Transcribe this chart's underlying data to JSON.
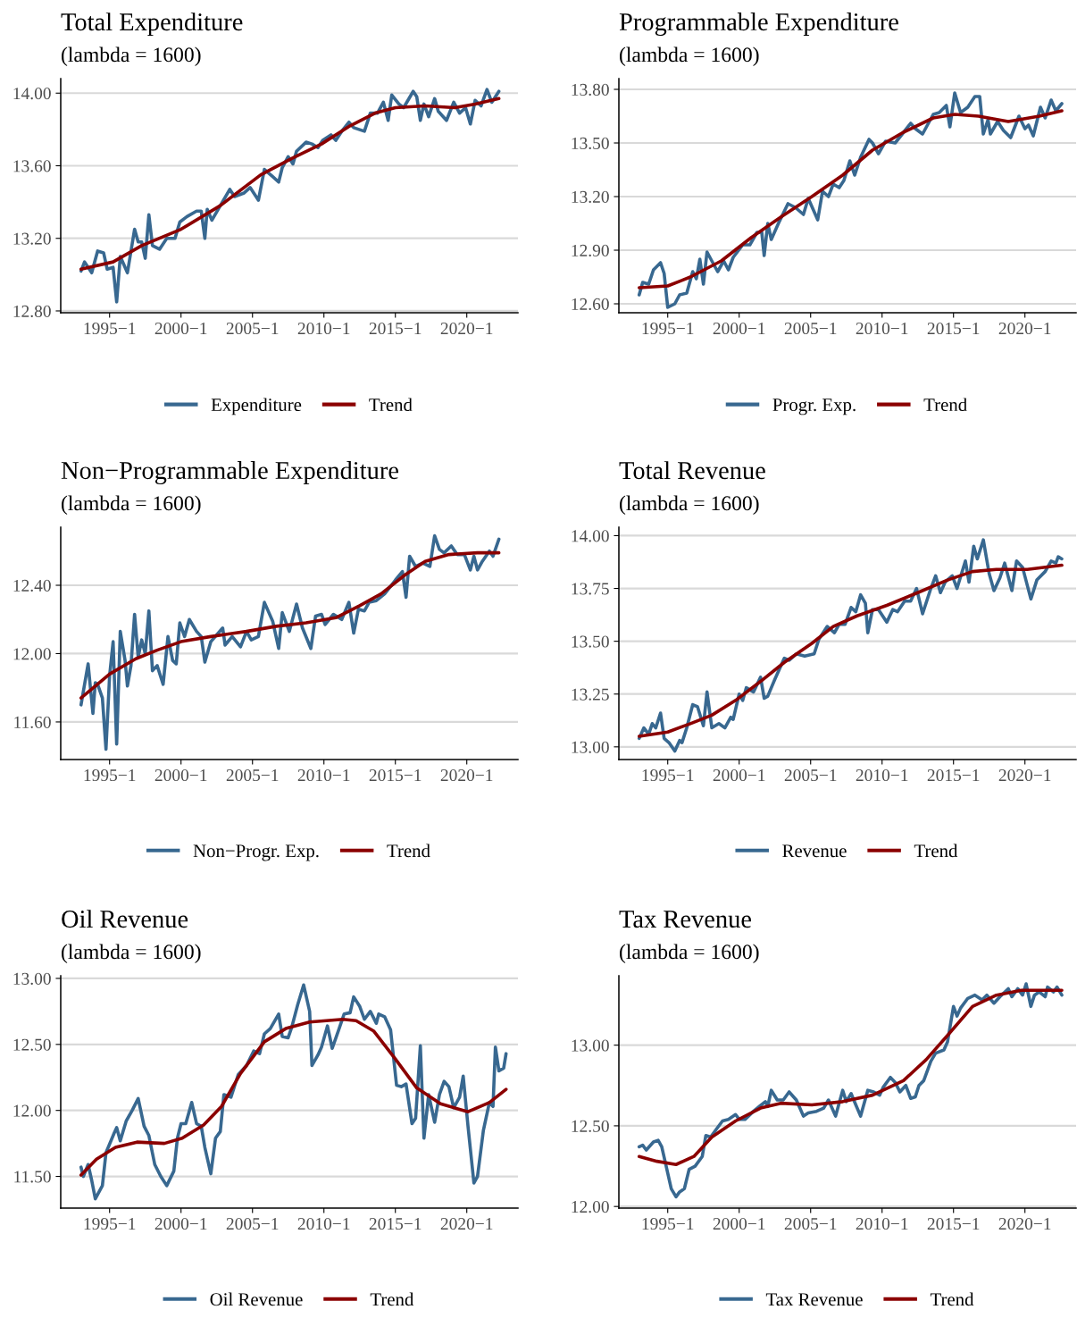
{
  "chart_data": [
    {
      "type": "line",
      "title": "Total Expenditure",
      "subtitle": "(lambda = 1600)",
      "xlim": [
        "1991-08",
        "2023-08"
      ],
      "xticks": [
        {
          "value": "1995-01",
          "label": "1995−1"
        },
        {
          "value": "2000-01",
          "label": "2000−1"
        },
        {
          "value": "2005-01",
          "label": "2005−1"
        },
        {
          "value": "2010-01",
          "label": "2010−1"
        },
        {
          "value": "2015-01",
          "label": "2015−1"
        },
        {
          "value": "2020-01",
          "label": "2020−1"
        }
      ],
      "ylim": [
        12.79,
        14.08
      ],
      "yticks": [
        {
          "value": 12.8,
          "label": "12.80"
        },
        {
          "value": 13.2,
          "label": "13.20"
        },
        {
          "value": 13.6,
          "label": "13.60"
        },
        {
          "value": 14.0,
          "label": "14.00"
        }
      ],
      "grid": "y",
      "legend": "bottom",
      "series": [
        {
          "name": "Expenditure",
          "color": "#386890",
          "x": [
            "1993-01",
            "1993-04",
            "1993-10",
            "1994-03",
            "1994-08",
            "1994-11",
            "1995-04",
            "1995-07",
            "1995-10",
            "1996-04",
            "1996-10",
            "1997-01",
            "1997-04",
            "1997-07",
            "1997-10",
            "1998-01",
            "1998-07",
            "1999-01",
            "1999-08",
            "1999-12",
            "2000-06",
            "2001-02",
            "2001-06",
            "2001-09",
            "2001-11",
            "2002-03",
            "2002-10",
            "2003-06",
            "2003-10",
            "2004-06",
            "2004-11",
            "2005-06",
            "2005-11",
            "2006-06",
            "2006-11",
            "2007-02",
            "2007-07",
            "2007-11",
            "2008-02",
            "2008-10",
            "2009-03",
            "2009-08",
            "2009-12",
            "2010-07",
            "2010-11",
            "2011-04",
            "2011-10",
            "2012-02",
            "2012-11",
            "2013-04",
            "2013-10",
            "2014-03",
            "2014-07",
            "2014-10",
            "2015-04",
            "2015-08",
            "2016-04",
            "2016-07",
            "2016-10",
            "2017-01",
            "2017-05",
            "2017-10",
            "2018-01",
            "2018-08",
            "2019-02",
            "2019-07",
            "2019-12",
            "2020-04",
            "2020-08",
            "2021-01",
            "2021-06",
            "2021-10",
            "2022-04"
          ],
          "values": [
            13.02,
            13.07,
            13.01,
            13.13,
            13.12,
            13.03,
            13.04,
            12.85,
            13.1,
            13.01,
            13.25,
            13.18,
            13.18,
            13.09,
            13.33,
            13.16,
            13.14,
            13.2,
            13.2,
            13.29,
            13.32,
            13.35,
            13.35,
            13.2,
            13.36,
            13.3,
            13.38,
            13.47,
            13.43,
            13.45,
            13.48,
            13.41,
            13.58,
            13.54,
            13.51,
            13.59,
            13.65,
            13.61,
            13.68,
            13.73,
            13.72,
            13.7,
            13.74,
            13.77,
            13.74,
            13.79,
            13.84,
            13.81,
            13.79,
            13.89,
            13.89,
            13.95,
            13.85,
            13.99,
            13.94,
            13.92,
            14.01,
            13.98,
            13.85,
            13.94,
            13.87,
            13.97,
            13.9,
            13.85,
            13.95,
            13.89,
            13.92,
            13.83,
            13.96,
            13.93,
            14.02,
            13.95,
            14.01
          ]
        },
        {
          "name": "Trend",
          "color": "#8b0000",
          "x": [
            "1993-01",
            "1995-04",
            "1997-04",
            "2000-01",
            "2002-10",
            "2005-08",
            "2007-10",
            "2009-11",
            "2011-11",
            "2013-08",
            "2015-01",
            "2017-02",
            "2019-03",
            "2020-08",
            "2022-04"
          ],
          "values": [
            13.03,
            13.07,
            13.16,
            13.25,
            13.38,
            13.55,
            13.64,
            13.72,
            13.82,
            13.89,
            13.92,
            13.93,
            13.92,
            13.94,
            13.97
          ]
        }
      ]
    },
    {
      "type": "line",
      "title": "Programmable Expenditure",
      "subtitle": "(lambda = 1600)",
      "xlim": [
        "1991-08",
        "2023-08"
      ],
      "xticks": [
        {
          "value": "1995-01",
          "label": "1995−1"
        },
        {
          "value": "2000-01",
          "label": "2000−1"
        },
        {
          "value": "2005-01",
          "label": "2005−1"
        },
        {
          "value": "2010-01",
          "label": "2010−1"
        },
        {
          "value": "2015-01",
          "label": "2015−1"
        },
        {
          "value": "2020-01",
          "label": "2020−1"
        }
      ],
      "ylim": [
        12.55,
        13.86
      ],
      "yticks": [
        {
          "value": 12.6,
          "label": "12.60"
        },
        {
          "value": 12.9,
          "label": "12.90"
        },
        {
          "value": 13.2,
          "label": "13.20"
        },
        {
          "value": 13.5,
          "label": "13.50"
        },
        {
          "value": 13.8,
          "label": "13.80"
        }
      ],
      "grid": "y",
      "legend": "bottom",
      "series": [
        {
          "name": "Progr. Exp.",
          "color": "#386890",
          "x": [
            "1993-01",
            "1993-04",
            "1993-09",
            "1994-01",
            "1994-07",
            "1994-10",
            "1995-01",
            "1995-07",
            "1995-11",
            "1996-05",
            "1996-10",
            "1997-01",
            "1997-04",
            "1997-07",
            "1997-10",
            "1998-02",
            "1998-07",
            "1998-12",
            "1999-04",
            "1999-08",
            "2000-04",
            "2000-10",
            "2001-04",
            "2001-08",
            "2001-10",
            "2002-01",
            "2002-04",
            "2002-10",
            "2003-06",
            "2003-12",
            "2004-07",
            "2004-11",
            "2005-07",
            "2005-11",
            "2006-04",
            "2006-08",
            "2007-01",
            "2007-05",
            "2007-10",
            "2008-02",
            "2008-07",
            "2009-02",
            "2009-05",
            "2009-10",
            "2010-04",
            "2010-12",
            "2011-06",
            "2012-01",
            "2012-05",
            "2012-11",
            "2013-08",
            "2014-01",
            "2014-07",
            "2014-10",
            "2015-02",
            "2015-07",
            "2016-01",
            "2016-07",
            "2016-11",
            "2017-02",
            "2017-06",
            "2017-08",
            "2018-02",
            "2018-07",
            "2019-01",
            "2019-08",
            "2020-01",
            "2020-04",
            "2020-08",
            "2021-02",
            "2021-06",
            "2021-11",
            "2022-03",
            "2022-08"
          ],
          "values": [
            12.65,
            12.72,
            12.71,
            12.79,
            12.83,
            12.77,
            12.58,
            12.6,
            12.65,
            12.66,
            12.78,
            12.74,
            12.85,
            12.71,
            12.89,
            12.84,
            12.78,
            12.84,
            12.79,
            12.86,
            12.93,
            12.93,
            13.0,
            13.0,
            12.87,
            13.05,
            12.96,
            13.05,
            13.16,
            13.14,
            13.1,
            13.19,
            13.07,
            13.23,
            13.2,
            13.27,
            13.25,
            13.29,
            13.4,
            13.32,
            13.42,
            13.52,
            13.5,
            13.44,
            13.51,
            13.5,
            13.55,
            13.61,
            13.58,
            13.55,
            13.66,
            13.67,
            13.71,
            13.59,
            13.78,
            13.67,
            13.7,
            13.76,
            13.76,
            13.55,
            13.63,
            13.55,
            13.62,
            13.57,
            13.53,
            13.65,
            13.58,
            13.6,
            13.54,
            13.7,
            13.64,
            13.74,
            13.68,
            13.72
          ]
        },
        {
          "name": "Trend",
          "color": "#8b0000",
          "x": [
            "1993-01",
            "1995-01",
            "1996-08",
            "1998-10",
            "2000-11",
            "2003-01",
            "2005-02",
            "2007-04",
            "2009-05",
            "2011-07",
            "2013-08",
            "2015-02",
            "2016-10",
            "2018-11",
            "2021-01",
            "2022-08"
          ],
          "values": [
            12.69,
            12.7,
            12.75,
            12.84,
            12.97,
            13.09,
            13.2,
            13.32,
            13.46,
            13.56,
            13.64,
            13.66,
            13.65,
            13.62,
            13.65,
            13.68
          ]
        }
      ]
    },
    {
      "type": "line",
      "title": "Non−Programmable Expenditure",
      "subtitle": "(lambda = 1600)",
      "xlim": [
        "1991-08",
        "2023-08"
      ],
      "xticks": [
        {
          "value": "1995-01",
          "label": "1995−1"
        },
        {
          "value": "2000-01",
          "label": "2000−1"
        },
        {
          "value": "2005-01",
          "label": "2005−1"
        },
        {
          "value": "2010-01",
          "label": "2010−1"
        },
        {
          "value": "2015-01",
          "label": "2015−1"
        },
        {
          "value": "2020-01",
          "label": "2020−1"
        }
      ],
      "ylim": [
        11.38,
        12.74
      ],
      "yticks": [
        {
          "value": 11.6,
          "label": "11.60"
        },
        {
          "value": 12.0,
          "label": "12.00"
        },
        {
          "value": 12.4,
          "label": "12.40"
        }
      ],
      "grid": "y",
      "legend": "bottom",
      "series": [
        {
          "name": "Non−Progr. Exp.",
          "color": "#386890",
          "x": [
            "1993-01",
            "1993-07",
            "1993-11",
            "1994-01",
            "1994-03",
            "1994-07",
            "1994-10",
            "1995-01",
            "1995-04",
            "1995-07",
            "1995-10",
            "1996-02",
            "1996-04",
            "1996-07",
            "1996-10",
            "1997-01",
            "1997-04",
            "1997-07",
            "1997-10",
            "1998-01",
            "1998-05",
            "1998-10",
            "1999-02",
            "1999-06",
            "1999-09",
            "1999-12",
            "2000-04",
            "2000-08",
            "2001-02",
            "2001-06",
            "2001-09",
            "2002-02",
            "2002-12",
            "2003-02",
            "2003-08",
            "2004-03",
            "2004-08",
            "2004-12",
            "2005-06",
            "2005-11",
            "2006-06",
            "2006-11",
            "2007-02",
            "2007-08",
            "2008-02",
            "2008-07",
            "2009-02",
            "2009-06",
            "2009-11",
            "2010-02",
            "2010-09",
            "2011-04",
            "2011-10",
            "2012-02",
            "2012-06",
            "2012-11",
            "2013-03",
            "2013-09",
            "2014-04",
            "2015-01",
            "2015-07",
            "2015-10",
            "2016-01",
            "2016-06",
            "2016-12",
            "2017-06",
            "2017-10",
            "2018-02",
            "2018-06",
            "2018-12",
            "2019-05",
            "2019-11",
            "2020-04",
            "2020-07",
            "2020-10",
            "2021-02",
            "2021-08",
            "2021-11",
            "2022-04"
          ],
          "values": [
            11.7,
            11.94,
            11.65,
            11.83,
            11.82,
            11.74,
            11.44,
            11.87,
            12.07,
            11.47,
            12.13,
            11.96,
            11.81,
            11.93,
            12.23,
            11.98,
            12.08,
            12.0,
            12.25,
            11.9,
            11.93,
            11.82,
            12.1,
            11.96,
            11.94,
            12.18,
            12.1,
            12.2,
            12.13,
            12.1,
            11.95,
            12.07,
            12.15,
            12.05,
            12.1,
            12.04,
            12.13,
            12.08,
            12.1,
            12.3,
            12.19,
            12.03,
            12.24,
            12.13,
            12.29,
            12.15,
            12.03,
            12.22,
            12.23,
            12.17,
            12.23,
            12.2,
            12.3,
            12.12,
            12.26,
            12.25,
            12.3,
            12.31,
            12.35,
            12.43,
            12.48,
            12.33,
            12.57,
            12.51,
            12.53,
            12.51,
            12.69,
            12.61,
            12.59,
            12.63,
            12.58,
            12.58,
            12.49,
            12.57,
            12.49,
            12.54,
            12.6,
            12.57,
            12.67
          ]
        },
        {
          "name": "Trend",
          "color": "#8b0000",
          "x": [
            "1993-01",
            "1995-01",
            "1996-11",
            "1998-05",
            "2000-01",
            "2002-02",
            "2004-08",
            "2006-09",
            "2008-10",
            "2010-11",
            "2012-07",
            "2014-01",
            "2015-09",
            "2017-02",
            "2018-10",
            "2020-10",
            "2022-04"
          ],
          "values": [
            11.74,
            11.88,
            11.97,
            12.02,
            12.07,
            12.1,
            12.13,
            12.16,
            12.18,
            12.21,
            12.28,
            12.35,
            12.46,
            12.54,
            12.58,
            12.59,
            12.59
          ]
        }
      ]
    },
    {
      "type": "line",
      "title": "Total Revenue",
      "subtitle": "(lambda = 1600)",
      "xlim": [
        "1991-08",
        "2023-08"
      ],
      "xticks": [
        {
          "value": "1995-01",
          "label": "1995−1"
        },
        {
          "value": "2000-01",
          "label": "2000−1"
        },
        {
          "value": "2005-01",
          "label": "2005−1"
        },
        {
          "value": "2010-01",
          "label": "2010−1"
        },
        {
          "value": "2015-01",
          "label": "2015−1"
        },
        {
          "value": "2020-01",
          "label": "2020−1"
        }
      ],
      "ylim": [
        12.94,
        14.04
      ],
      "yticks": [
        {
          "value": 13.0,
          "label": "13.00"
        },
        {
          "value": 13.25,
          "label": "13.25"
        },
        {
          "value": 13.5,
          "label": "13.50"
        },
        {
          "value": 13.75,
          "label": "13.75"
        },
        {
          "value": 14.0,
          "label": "14.00"
        }
      ],
      "grid": "y",
      "legend": "bottom",
      "series": [
        {
          "name": "Revenue",
          "color": "#386890",
          "x": [
            "1993-01",
            "1993-05",
            "1993-09",
            "1993-12",
            "1994-03",
            "1994-07",
            "1994-10",
            "1995-02",
            "1995-07",
            "1995-11",
            "1996-01",
            "1996-05",
            "1996-10",
            "1997-02",
            "1997-07",
            "1997-10",
            "1998-02",
            "1998-08",
            "1999-01",
            "1999-06",
            "1999-08",
            "2000-01",
            "2000-04",
            "2000-07",
            "2001-01",
            "2001-07",
            "2001-10",
            "2002-01",
            "2002-07",
            "2003-03",
            "2003-07",
            "2004-01",
            "2004-08",
            "2005-04",
            "2005-08",
            "2006-03",
            "2006-09",
            "2007-01",
            "2007-06",
            "2007-11",
            "2008-03",
            "2008-07",
            "2008-11",
            "2009-01",
            "2009-05",
            "2009-10",
            "2010-05",
            "2010-10",
            "2011-02",
            "2011-08",
            "2012-01",
            "2012-06",
            "2012-11",
            "2013-06",
            "2013-10",
            "2014-02",
            "2014-06",
            "2014-12",
            "2015-04",
            "2015-11",
            "2016-02",
            "2016-06",
            "2016-09",
            "2017-02",
            "2017-07",
            "2017-11",
            "2018-04",
            "2018-08",
            "2019-02",
            "2019-06",
            "2019-11",
            "2020-06",
            "2020-11",
            "2021-06",
            "2021-11",
            "2022-03",
            "2022-05",
            "2022-08"
          ],
          "values": [
            13.04,
            13.09,
            13.06,
            13.11,
            13.09,
            13.16,
            13.04,
            13.02,
            12.98,
            13.03,
            13.02,
            13.09,
            13.2,
            13.19,
            13.1,
            13.26,
            13.09,
            13.11,
            13.09,
            13.14,
            13.13,
            13.25,
            13.22,
            13.28,
            13.26,
            13.33,
            13.23,
            13.24,
            13.32,
            13.42,
            13.41,
            13.44,
            13.43,
            13.44,
            13.51,
            13.57,
            13.54,
            13.58,
            13.58,
            13.66,
            13.64,
            13.72,
            13.68,
            13.54,
            13.65,
            13.65,
            13.59,
            13.65,
            13.64,
            13.69,
            13.69,
            13.75,
            13.63,
            13.75,
            13.81,
            13.73,
            13.78,
            13.81,
            13.75,
            13.88,
            13.78,
            13.95,
            13.89,
            13.98,
            13.82,
            13.74,
            13.8,
            13.87,
            13.74,
            13.88,
            13.85,
            13.7,
            13.79,
            13.83,
            13.88,
            13.87,
            13.9,
            13.89
          ]
        },
        {
          "name": "Trend",
          "color": "#8b0000",
          "x": [
            "1993-01",
            "1995-01",
            "1996-08",
            "1998-02",
            "1999-10",
            "2001-07",
            "2003-03",
            "2005-02",
            "2006-08",
            "2008-04",
            "2010-05",
            "2012-07",
            "2014-08",
            "2016-05",
            "2018-01",
            "2020-03",
            "2022-08"
          ],
          "values": [
            13.05,
            13.07,
            13.11,
            13.15,
            13.22,
            13.31,
            13.4,
            13.49,
            13.57,
            13.62,
            13.67,
            13.73,
            13.79,
            13.83,
            13.84,
            13.84,
            13.86
          ]
        }
      ]
    },
    {
      "type": "line",
      "title": "Oil Revenue",
      "subtitle": "(lambda = 1600)",
      "xlim": [
        "1991-08",
        "2023-08"
      ],
      "xticks": [
        {
          "value": "1995-01",
          "label": "1995−1"
        },
        {
          "value": "2000-01",
          "label": "2000−1"
        },
        {
          "value": "2005-01",
          "label": "2005−1"
        },
        {
          "value": "2010-01",
          "label": "2010−1"
        },
        {
          "value": "2015-01",
          "label": "2015−1"
        },
        {
          "value": "2020-01",
          "label": "2020−1"
        }
      ],
      "ylim": [
        11.26,
        13.02
      ],
      "yticks": [
        {
          "value": 11.5,
          "label": "11.50"
        },
        {
          "value": 12.0,
          "label": "12.00"
        },
        {
          "value": 12.5,
          "label": "12.50"
        },
        {
          "value": 13.0,
          "label": "13.00"
        }
      ],
      "grid": "y",
      "legend": "bottom",
      "series": [
        {
          "name": "Oil Revenue",
          "color": "#386890",
          "x": [
            "1993-01",
            "1993-03",
            "1993-07",
            "1993-10",
            "1994-01",
            "1994-07",
            "1994-10",
            "1995-05",
            "1995-07",
            "1995-10",
            "1996-03",
            "1996-08",
            "1997-01",
            "1997-06",
            "1997-10",
            "1998-03",
            "1998-08",
            "1999-01",
            "1999-07",
            "1999-10",
            "2000-01",
            "2000-05",
            "2000-10",
            "2001-02",
            "2001-06",
            "2001-09",
            "2002-02",
            "2002-06",
            "2002-10",
            "2003-01",
            "2003-07",
            "2004-01",
            "2004-08",
            "2005-02",
            "2005-07",
            "2005-11",
            "2006-04",
            "2006-11",
            "2007-02",
            "2007-07",
            "2007-10",
            "2008-03",
            "2008-08",
            "2009-01",
            "2009-03",
            "2009-08",
            "2009-11",
            "2010-04",
            "2010-08",
            "2011-01",
            "2011-06",
            "2011-11",
            "2012-02",
            "2012-07",
            "2012-11",
            "2013-04",
            "2013-09",
            "2013-11",
            "2014-04",
            "2014-09",
            "2015-02",
            "2015-06",
            "2015-10",
            "2016-03",
            "2016-06",
            "2016-10",
            "2017-01",
            "2017-05",
            "2017-10",
            "2018-02",
            "2018-06",
            "2018-10",
            "2019-02",
            "2019-07",
            "2019-10",
            "2020-02",
            "2020-07",
            "2020-10",
            "2021-03",
            "2021-08",
            "2021-11",
            "2022-01",
            "2022-04",
            "2022-08",
            "2022-10"
          ],
          "values": [
            11.57,
            11.5,
            11.59,
            11.47,
            11.33,
            11.43,
            11.68,
            11.83,
            11.87,
            11.77,
            11.92,
            12.0,
            12.09,
            11.88,
            11.81,
            11.59,
            11.5,
            11.43,
            11.54,
            11.79,
            11.9,
            11.9,
            12.06,
            11.9,
            11.88,
            11.72,
            11.52,
            11.79,
            11.84,
            12.12,
            12.1,
            12.27,
            12.34,
            12.45,
            12.43,
            12.58,
            12.62,
            12.73,
            12.56,
            12.55,
            12.63,
            12.8,
            12.95,
            12.75,
            12.34,
            12.42,
            12.48,
            12.64,
            12.47,
            12.6,
            12.73,
            12.74,
            12.86,
            12.79,
            12.69,
            12.75,
            12.66,
            12.73,
            12.71,
            12.61,
            12.19,
            12.18,
            12.2,
            11.9,
            11.94,
            12.49,
            11.79,
            12.12,
            11.91,
            12.12,
            12.22,
            12.18,
            12.02,
            12.1,
            12.26,
            11.88,
            11.45,
            11.5,
            11.85,
            12.06,
            12.03,
            12.48,
            12.3,
            12.32,
            12.43
          ]
        },
        {
          "name": "Trend",
          "color": "#8b0000",
          "x": [
            "1993-01",
            "1994-02",
            "1995-06",
            "1996-12",
            "1998-11",
            "2000-02",
            "2001-08",
            "2002-11",
            "2004-03",
            "2005-11",
            "2007-05",
            "2009-01",
            "2011-05",
            "2012-04",
            "2013-07",
            "2015-01",
            "2016-07",
            "2018-03",
            "2020-02",
            "2021-08",
            "2022-10"
          ],
          "values": [
            11.51,
            11.63,
            11.72,
            11.76,
            11.75,
            11.79,
            11.89,
            12.03,
            12.28,
            12.52,
            12.62,
            12.67,
            12.69,
            12.68,
            12.6,
            12.39,
            12.17,
            12.05,
            11.99,
            12.06,
            12.16
          ]
        }
      ]
    },
    {
      "type": "line",
      "title": "Tax Revenue",
      "subtitle": "(lambda = 1600)",
      "xlim": [
        "1991-08",
        "2023-08"
      ],
      "xticks": [
        {
          "value": "1995-01",
          "label": "1995−1"
        },
        {
          "value": "2000-01",
          "label": "2000−1"
        },
        {
          "value": "2005-01",
          "label": "2005−1"
        },
        {
          "value": "2010-01",
          "label": "2010−1"
        },
        {
          "value": "2015-01",
          "label": "2015−1"
        },
        {
          "value": "2020-01",
          "label": "2020−1"
        }
      ],
      "ylim": [
        11.99,
        13.43
      ],
      "yticks": [
        {
          "value": 12.0,
          "label": "12.00"
        },
        {
          "value": 12.5,
          "label": "12.50"
        },
        {
          "value": 13.0,
          "label": "13.00"
        }
      ],
      "grid": "y",
      "legend": "bottom",
      "series": [
        {
          "name": "Tax Revenue",
          "color": "#386890",
          "x": [
            "1993-01",
            "1993-04",
            "1993-07",
            "1994-01",
            "1994-05",
            "1994-08",
            "1994-12",
            "1995-04",
            "1995-08",
            "1995-11",
            "1996-03",
            "1996-07",
            "1996-12",
            "1997-06",
            "1997-09",
            "1998-01",
            "1998-06",
            "1998-11",
            "1999-04",
            "1999-10",
            "2000-01",
            "2000-06",
            "2001-01",
            "2001-06",
            "2001-11",
            "2002-01",
            "2002-04",
            "2002-09",
            "2003-02",
            "2003-07",
            "2004-01",
            "2004-07",
            "2004-11",
            "2005-06",
            "2005-12",
            "2006-04",
            "2006-10",
            "2007-04",
            "2007-07",
            "2007-11",
            "2008-03",
            "2008-07",
            "2009-01",
            "2009-06",
            "2009-11",
            "2010-02",
            "2010-08",
            "2010-12",
            "2011-04",
            "2011-09",
            "2012-01",
            "2012-05",
            "2012-08",
            "2012-12",
            "2013-06",
            "2013-10",
            "2014-05",
            "2014-08",
            "2015-01",
            "2015-04",
            "2015-07",
            "2016-01",
            "2016-07",
            "2017-01",
            "2017-05",
            "2017-11",
            "2018-04",
            "2018-11",
            "2019-02",
            "2019-07",
            "2019-11",
            "2020-02",
            "2020-06",
            "2020-09",
            "2021-01",
            "2021-06",
            "2021-08",
            "2022-01",
            "2022-04",
            "2022-08"
          ],
          "values": [
            12.37,
            12.38,
            12.35,
            12.4,
            12.41,
            12.37,
            12.24,
            12.11,
            12.06,
            12.09,
            12.11,
            12.23,
            12.25,
            12.31,
            12.44,
            12.43,
            12.48,
            12.53,
            12.54,
            12.57,
            12.54,
            12.54,
            12.59,
            12.62,
            12.65,
            12.62,
            12.72,
            12.66,
            12.66,
            12.71,
            12.66,
            12.56,
            12.58,
            12.59,
            12.61,
            12.66,
            12.56,
            12.72,
            12.65,
            12.7,
            12.63,
            12.56,
            12.72,
            12.71,
            12.69,
            12.74,
            12.8,
            12.77,
            12.71,
            12.75,
            12.67,
            12.68,
            12.75,
            12.78,
            12.9,
            12.95,
            12.97,
            13.02,
            13.24,
            13.18,
            13.23,
            13.29,
            13.31,
            13.28,
            13.31,
            13.26,
            13.3,
            13.35,
            13.3,
            13.35,
            13.31,
            13.38,
            13.24,
            13.31,
            13.33,
            13.3,
            13.36,
            13.33,
            13.36,
            13.31
          ]
        },
        {
          "name": "Trend",
          "color": "#8b0000",
          "x": [
            "1993-01",
            "1994-04",
            "1995-08",
            "1996-11",
            "1998-02",
            "1999-10",
            "2001-07",
            "2002-12",
            "2005-02",
            "2007-04",
            "2009-05",
            "2011-07",
            "2013-02",
            "2014-08",
            "2016-05",
            "2018-01",
            "2019-10",
            "2021-06",
            "2022-08"
          ],
          "values": [
            12.31,
            12.28,
            12.26,
            12.31,
            12.43,
            12.53,
            12.61,
            12.64,
            12.63,
            12.65,
            12.69,
            12.78,
            12.91,
            13.06,
            13.24,
            13.31,
            13.34,
            13.34,
            13.34
          ]
        }
      ]
    }
  ]
}
